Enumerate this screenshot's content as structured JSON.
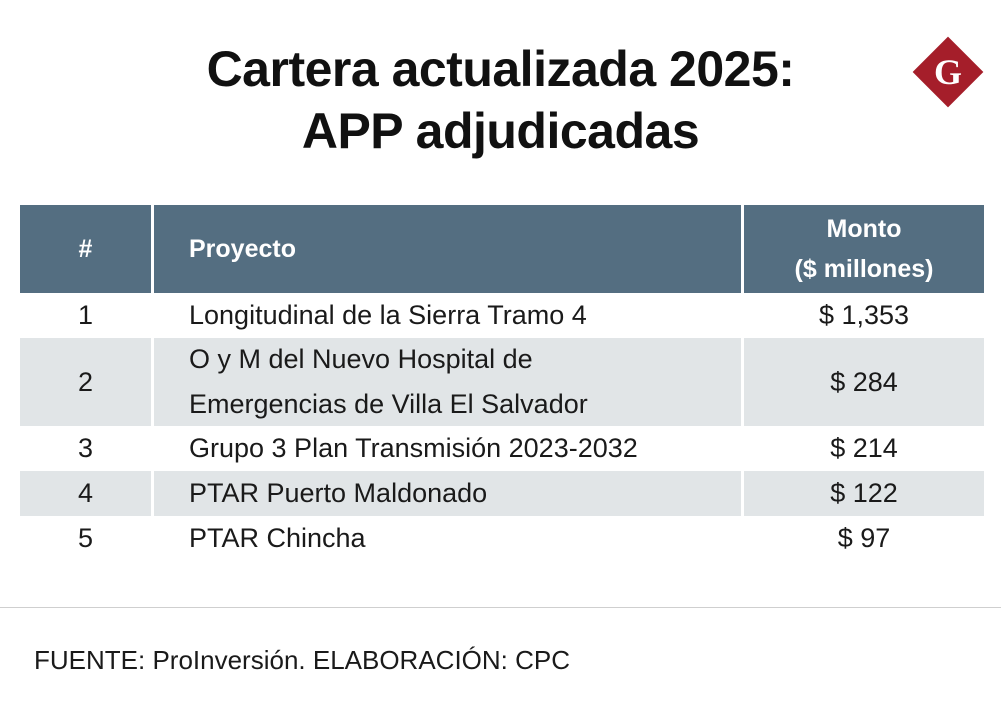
{
  "title": {
    "line1": "Cartera actualizada 2025:",
    "line2": "APP adjudicadas"
  },
  "logo": {
    "icon": "g-diamond-logo",
    "letter": "G",
    "color": "#a51e2a"
  },
  "colors": {
    "header_bg": "#546e81",
    "shaded_row": "#e1e5e7",
    "header_text": "#ffffff"
  },
  "chart_data": {
    "type": "table",
    "columns": [
      "#",
      "Proyecto",
      "Monto",
      "($ millones)"
    ],
    "rows": [
      {
        "num": "1",
        "project": "Longitudinal de la Sierra Tramo 4",
        "amount": "$ 1,353"
      },
      {
        "num": "2",
        "project_line1": "O y M del Nuevo Hospital de",
        "project_line2": "Emergencias de Villa El Salvador",
        "amount": "$ 284"
      },
      {
        "num": "3",
        "project": "Grupo 3 Plan Transmisión 2023-2032",
        "amount": "$ 214"
      },
      {
        "num": "4",
        "project": "PTAR Puerto Maldonado",
        "amount": "$ 122"
      },
      {
        "num": "5",
        "project": "PTAR Chincha",
        "amount": "$ 97"
      }
    ]
  },
  "source": "FUENTE: ProInversión. ELABORACIÓN: CPC"
}
